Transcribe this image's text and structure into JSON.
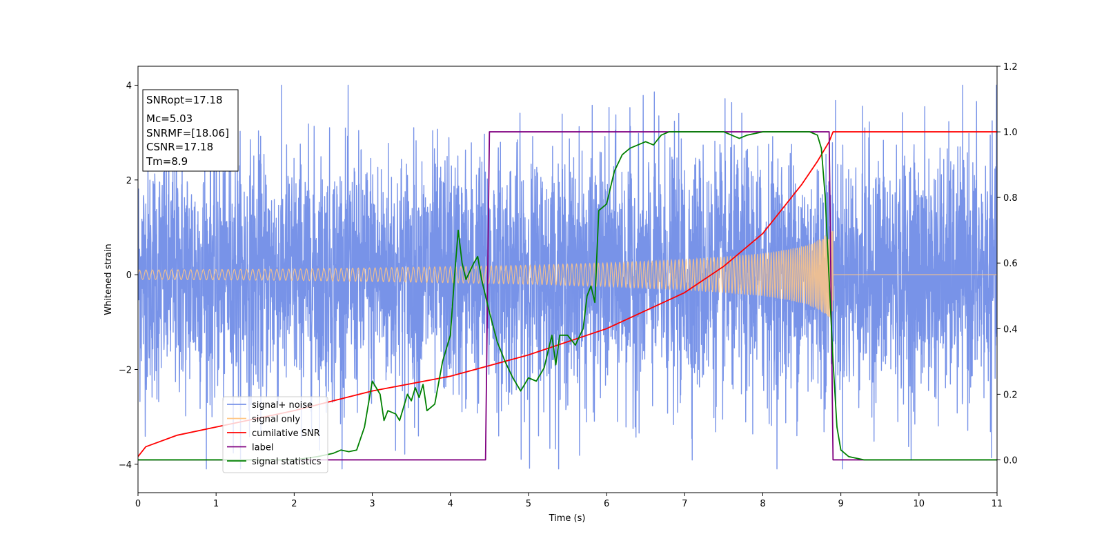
{
  "chart_data": {
    "type": "line",
    "xlabel": "Time (s)",
    "ylabel": "Whitened strain",
    "xlim": [
      0,
      11
    ],
    "ylim": [
      -4.6,
      4.4
    ],
    "y2lim": [
      -0.1,
      1.2
    ],
    "xticks": [
      "0",
      "1",
      "2",
      "3",
      "4",
      "5",
      "6",
      "7",
      "8",
      "9",
      "10",
      "11"
    ],
    "yticks": [
      "4",
      "2",
      "0",
      "−2",
      "−4"
    ],
    "y2ticks": [
      "0.0",
      "0.2",
      "0.4",
      "0.6",
      "0.8",
      "1.0",
      "1.2"
    ],
    "info_box": {
      "snr_opt": "SNRopt=17.18",
      "mc": "Mc=5.03",
      "snr_mf": "SNRMF=[18.06]",
      "csnr": "CSNR=17.18",
      "tm": "Tm=8.9"
    },
    "legend": {
      "placement": "lower-left",
      "items": [
        {
          "label": "signal+ noise",
          "color": "#7893e8"
        },
        {
          "label": "signal only",
          "color": "#ffc685"
        },
        {
          "label": "cumilative SNR",
          "color": "#ff0000"
        },
        {
          "label": "label",
          "color": "#800080"
        },
        {
          "label": "signal statistics",
          "color": "#008000"
        }
      ]
    },
    "series": [
      {
        "name": "signal+ noise",
        "axis": "left",
        "color": "#7893e8",
        "description_style": "noise",
        "x_range": [
          0,
          11
        ],
        "amplitude": 1.3
      },
      {
        "name": "signal only",
        "axis": "left",
        "color": "#ffc685",
        "envelope_points": [
          [
            0,
            0.1
          ],
          [
            2,
            0.12
          ],
          [
            4,
            0.17
          ],
          [
            5,
            0.2
          ],
          [
            6,
            0.25
          ],
          [
            7,
            0.32
          ],
          [
            7.5,
            0.38
          ],
          [
            8,
            0.45
          ],
          [
            8.3,
            0.53
          ],
          [
            8.5,
            0.6
          ],
          [
            8.7,
            0.72
          ],
          [
            8.85,
            0.9
          ],
          [
            8.9,
            0.95
          ]
        ],
        "end_x": 8.9
      },
      {
        "name": "cumilative SNR",
        "axis": "right",
        "color": "#ff0000",
        "points": [
          [
            0,
            0.01
          ],
          [
            0.1,
            0.04
          ],
          [
            0.5,
            0.075
          ],
          [
            1,
            0.1
          ],
          [
            2,
            0.15
          ],
          [
            3,
            0.21
          ],
          [
            4,
            0.255
          ],
          [
            5,
            0.32
          ],
          [
            6,
            0.4
          ],
          [
            7,
            0.51
          ],
          [
            7.5,
            0.59
          ],
          [
            8,
            0.69
          ],
          [
            8.3,
            0.78
          ],
          [
            8.5,
            0.84
          ],
          [
            8.7,
            0.91
          ],
          [
            8.85,
            0.97
          ],
          [
            8.9,
            1.0
          ],
          [
            11,
            1.0
          ]
        ]
      },
      {
        "name": "label",
        "axis": "right",
        "color": "#800080",
        "points": [
          [
            0,
            0.0
          ],
          [
            4.45,
            0.0
          ],
          [
            4.5,
            1.0
          ],
          [
            8.85,
            1.0
          ],
          [
            8.9,
            0.0
          ],
          [
            11,
            0.0
          ]
        ]
      },
      {
        "name": "signal statistics",
        "axis": "right",
        "color": "#008000",
        "points": [
          [
            0,
            0.0
          ],
          [
            0.5,
            0.0
          ],
          [
            1,
            0.0
          ],
          [
            1.5,
            0.0
          ],
          [
            2,
            0.0
          ],
          [
            2.3,
            0.01
          ],
          [
            2.5,
            0.02
          ],
          [
            2.6,
            0.03
          ],
          [
            2.7,
            0.025
          ],
          [
            2.8,
            0.03
          ],
          [
            2.9,
            0.1
          ],
          [
            3.0,
            0.24
          ],
          [
            3.1,
            0.2
          ],
          [
            3.15,
            0.12
          ],
          [
            3.2,
            0.15
          ],
          [
            3.3,
            0.14
          ],
          [
            3.35,
            0.12
          ],
          [
            3.4,
            0.16
          ],
          [
            3.45,
            0.2
          ],
          [
            3.5,
            0.18
          ],
          [
            3.55,
            0.22
          ],
          [
            3.6,
            0.19
          ],
          [
            3.65,
            0.23
          ],
          [
            3.7,
            0.15
          ],
          [
            3.8,
            0.17
          ],
          [
            3.9,
            0.3
          ],
          [
            4.0,
            0.38
          ],
          [
            4.05,
            0.55
          ],
          [
            4.1,
            0.7
          ],
          [
            4.15,
            0.6
          ],
          [
            4.2,
            0.55
          ],
          [
            4.3,
            0.6
          ],
          [
            4.35,
            0.62
          ],
          [
            4.4,
            0.55
          ],
          [
            4.5,
            0.45
          ],
          [
            4.6,
            0.36
          ],
          [
            4.7,
            0.3
          ],
          [
            4.8,
            0.25
          ],
          [
            4.9,
            0.21
          ],
          [
            5.0,
            0.25
          ],
          [
            5.1,
            0.24
          ],
          [
            5.2,
            0.28
          ],
          [
            5.3,
            0.38
          ],
          [
            5.35,
            0.29
          ],
          [
            5.4,
            0.38
          ],
          [
            5.5,
            0.38
          ],
          [
            5.6,
            0.35
          ],
          [
            5.7,
            0.4
          ],
          [
            5.75,
            0.5
          ],
          [
            5.8,
            0.53
          ],
          [
            5.85,
            0.48
          ],
          [
            5.9,
            0.76
          ],
          [
            6.0,
            0.78
          ],
          [
            6.1,
            0.88
          ],
          [
            6.2,
            0.93
          ],
          [
            6.3,
            0.95
          ],
          [
            6.4,
            0.96
          ],
          [
            6.5,
            0.97
          ],
          [
            6.6,
            0.96
          ],
          [
            6.7,
            0.99
          ],
          [
            6.8,
            1.0
          ],
          [
            7.0,
            1.0
          ],
          [
            7.2,
            1.0
          ],
          [
            7.5,
            1.0
          ],
          [
            7.7,
            0.98
          ],
          [
            7.8,
            0.99
          ],
          [
            8.0,
            1.0
          ],
          [
            8.3,
            1.0
          ],
          [
            8.6,
            1.0
          ],
          [
            8.7,
            0.99
          ],
          [
            8.75,
            0.95
          ],
          [
            8.8,
            0.8
          ],
          [
            8.85,
            0.55
          ],
          [
            8.9,
            0.3
          ],
          [
            8.95,
            0.1
          ],
          [
            9.0,
            0.03
          ],
          [
            9.1,
            0.01
          ],
          [
            9.3,
            0.0
          ],
          [
            10,
            0.0
          ],
          [
            11,
            0.0
          ]
        ]
      }
    ]
  }
}
